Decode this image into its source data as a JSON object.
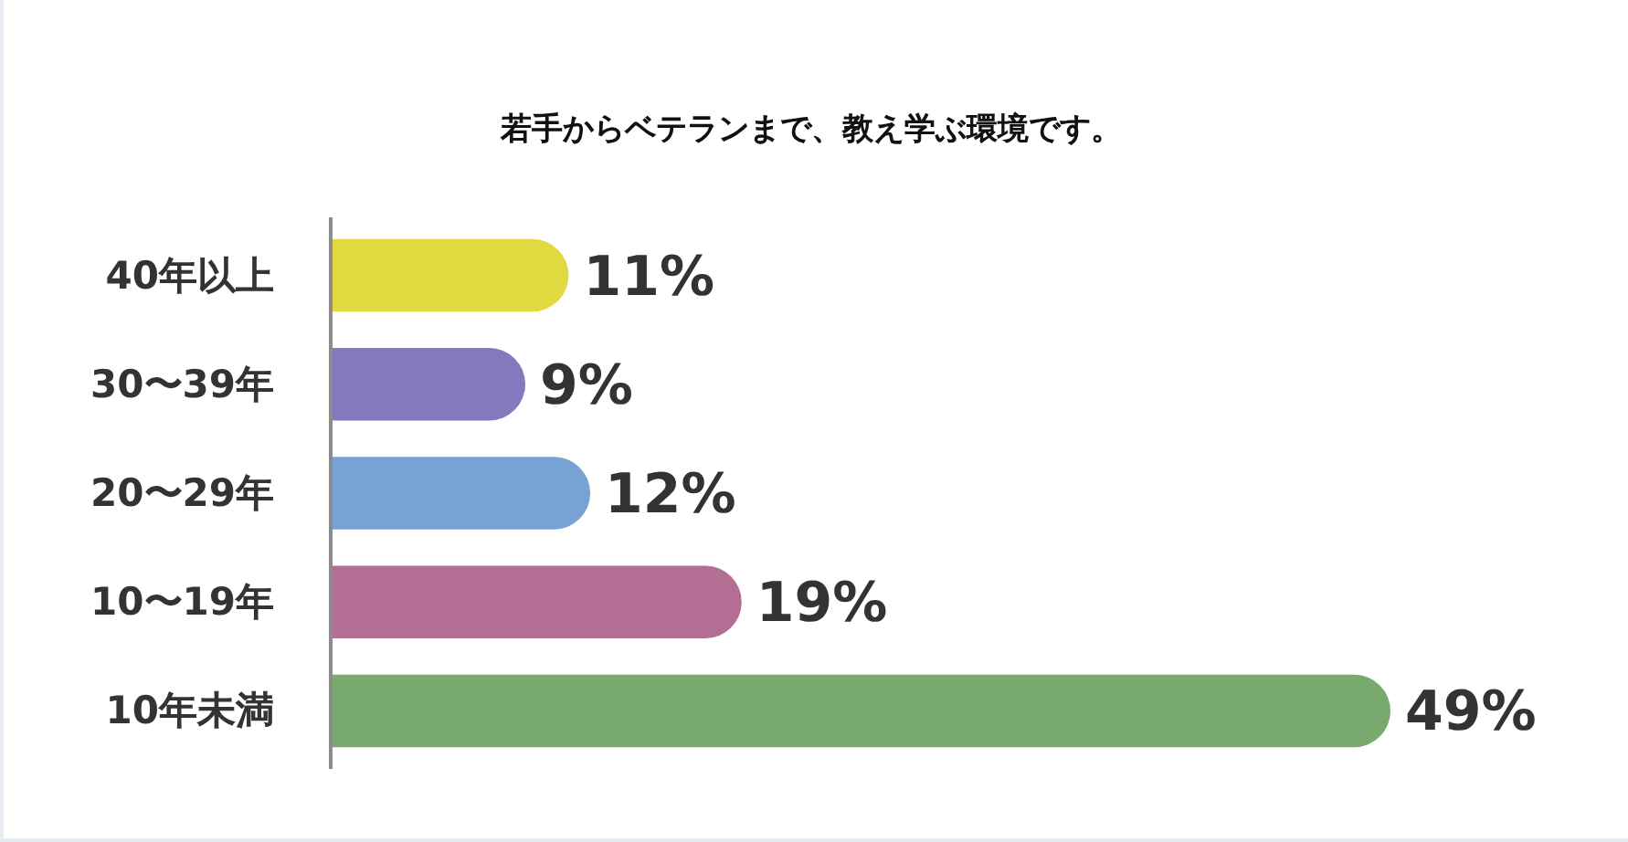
{
  "chart_data": {
    "type": "bar",
    "orientation": "horizontal",
    "title": "若手からベテランまで、教え学ぶ環境です。",
    "categories": [
      "40年以上",
      "30〜39年",
      "20〜29年",
      "10〜19年",
      "10年未満"
    ],
    "values": [
      11,
      9,
      12,
      19,
      49
    ],
    "value_labels": [
      "11%",
      "9%",
      "12%",
      "19%",
      "49%"
    ],
    "colors": [
      "#e0da40",
      "#8479bc",
      "#78a1d4",
      "#b36e93",
      "#78aa6d"
    ]
  }
}
